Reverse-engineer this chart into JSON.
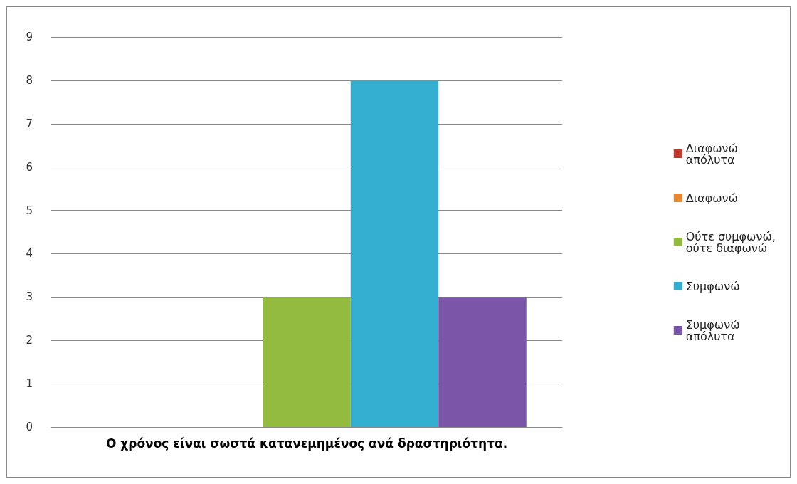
{
  "chart_data": {
    "type": "bar",
    "categories": [
      "Ο χρόνος είναι σωστά κατανεμημένος ανά δραστηριότητα."
    ],
    "series": [
      {
        "name": "Διαφωνώ απόλυτα",
        "color": "#c0392b",
        "values": [
          0
        ]
      },
      {
        "name": "Διαφωνώ",
        "color": "#e8892f",
        "values": [
          0
        ]
      },
      {
        "name": "Ούτε συμφωνώ, ούτε διαφωνώ",
        "color": "#93bb3f",
        "values": [
          3
        ]
      },
      {
        "name": "Συμφωνώ",
        "color": "#33aed0",
        "values": [
          8
        ]
      },
      {
        "name": "Συμφωνώ απόλυτα",
        "color": "#7b55a8",
        "values": [
          3
        ]
      }
    ],
    "ylim": [
      0,
      9
    ],
    "yticks": [
      0,
      1,
      2,
      3,
      4,
      5,
      6,
      7,
      8,
      9
    ],
    "grid": "y",
    "legend": "right"
  }
}
